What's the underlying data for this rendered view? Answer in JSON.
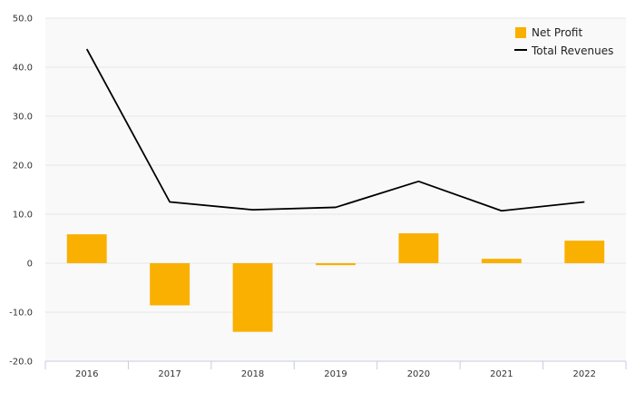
{
  "chart_data": {
    "type": "bar",
    "categories": [
      "2016",
      "2017",
      "2018",
      "2019",
      "2020",
      "2021",
      "2022"
    ],
    "series": [
      {
        "name": "Net Profit",
        "type": "bar",
        "color": "#f9b000",
        "values": [
          5.9,
          -8.6,
          -14.0,
          -0.4,
          6.1,
          0.9,
          4.6
        ]
      },
      {
        "name": "Total Revenues",
        "type": "line",
        "color": "#000000",
        "values": [
          43.7,
          12.5,
          10.9,
          11.4,
          16.7,
          10.7,
          12.5
        ]
      }
    ],
    "ylim": [
      -20,
      50
    ],
    "yticks": [
      "50.0",
      "40.0",
      "30.0",
      "20.0",
      "10.0",
      "0",
      "-10.0",
      "-20.0"
    ],
    "grid": true,
    "legend_position": "top-right",
    "title": "",
    "xlabel": "",
    "ylabel": ""
  }
}
